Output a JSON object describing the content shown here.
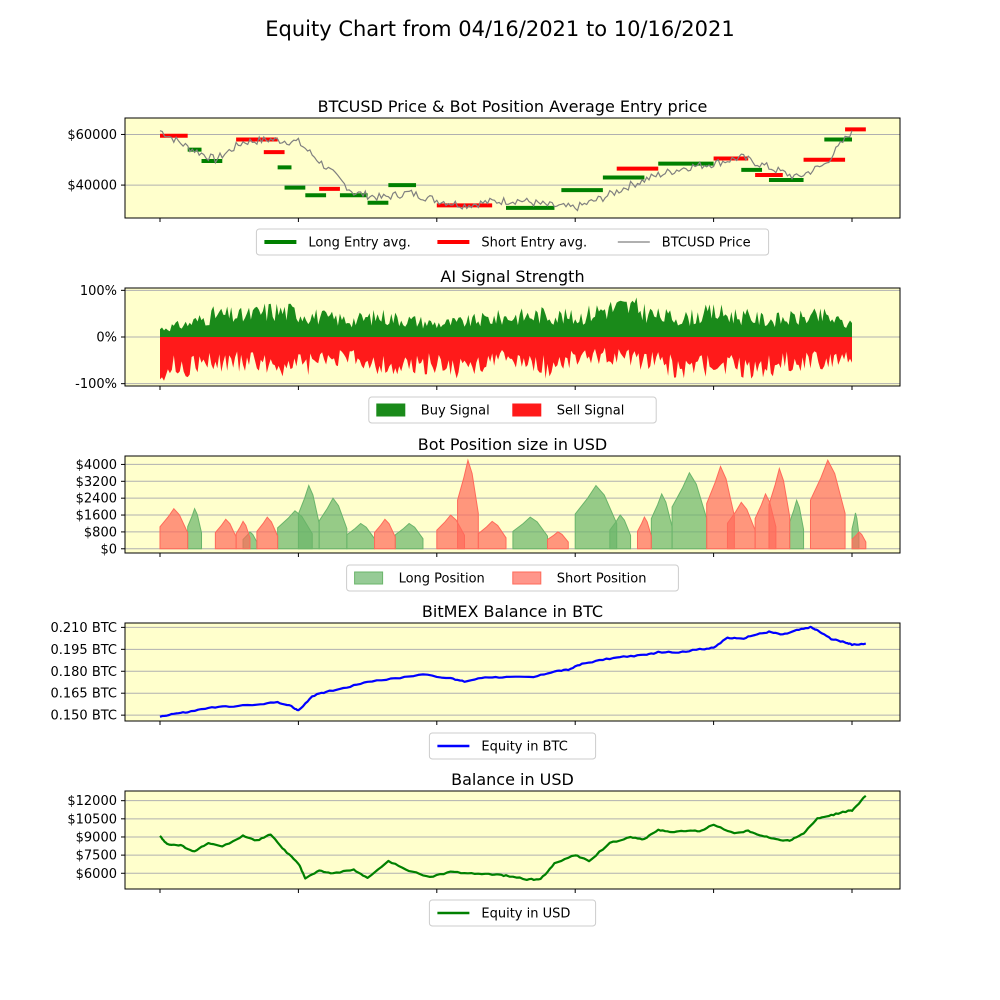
{
  "figure": {
    "title": "Equity Chart from 04/16/2021 to 10/16/2021"
  },
  "chart_data": [
    {
      "type": "line",
      "title": "BTCUSD Price & Bot Position Average Entry price",
      "ylim": [
        27000,
        66500
      ],
      "y_ticks": [
        40000,
        60000
      ],
      "y_tick_labels": [
        "$40000",
        "$60000"
      ],
      "x": [
        0,
        4,
        8,
        12,
        16,
        20,
        24,
        28,
        32,
        36,
        40,
        44,
        48,
        52,
        56,
        60,
        64,
        68,
        72,
        76,
        80,
        84,
        88,
        92,
        96,
        100
      ],
      "series": [
        {
          "name": "BTCUSD Price",
          "color": "#808080",
          "values": [
            61500,
            55000,
            50000,
            57000,
            58000,
            57000,
            47000,
            37000,
            35000,
            37000,
            34000,
            32000,
            33500,
            34000,
            32000,
            31000,
            35000,
            40000,
            44000,
            47000,
            48500,
            51000,
            47000,
            43000,
            48000,
            61500
          ]
        }
      ],
      "entry_segments": [
        {
          "type": "short",
          "x0": 0,
          "x1": 4,
          "y": 59500
        },
        {
          "type": "long",
          "x0": 4,
          "x1": 6,
          "y": 54000
        },
        {
          "type": "long",
          "x0": 6,
          "x1": 9,
          "y": 49500
        },
        {
          "type": "short",
          "x0": 11,
          "x1": 17,
          "y": 58000
        },
        {
          "type": "short",
          "x0": 15,
          "x1": 18,
          "y": 53000
        },
        {
          "type": "long",
          "x0": 17,
          "x1": 19,
          "y": 47000
        },
        {
          "type": "long",
          "x0": 18,
          "x1": 21,
          "y": 39000
        },
        {
          "type": "long",
          "x0": 21,
          "x1": 24,
          "y": 36000
        },
        {
          "type": "short",
          "x0": 23,
          "x1": 26,
          "y": 38500
        },
        {
          "type": "long",
          "x0": 26,
          "x1": 30,
          "y": 36000
        },
        {
          "type": "long",
          "x0": 30,
          "x1": 33,
          "y": 33000
        },
        {
          "type": "long",
          "x0": 33,
          "x1": 37,
          "y": 40000
        },
        {
          "type": "short",
          "x0": 40,
          "x1": 48,
          "y": 32000
        },
        {
          "type": "long",
          "x0": 50,
          "x1": 57,
          "y": 31000
        },
        {
          "type": "long",
          "x0": 58,
          "x1": 64,
          "y": 38000
        },
        {
          "type": "long",
          "x0": 64,
          "x1": 70,
          "y": 43000
        },
        {
          "type": "short",
          "x0": 66,
          "x1": 72,
          "y": 46500
        },
        {
          "type": "long",
          "x0": 72,
          "x1": 80,
          "y": 48500
        },
        {
          "type": "short",
          "x0": 80,
          "x1": 85,
          "y": 50500
        },
        {
          "type": "long",
          "x0": 84,
          "x1": 87,
          "y": 46000
        },
        {
          "type": "short",
          "x0": 86,
          "x1": 90,
          "y": 44000
        },
        {
          "type": "long",
          "x0": 88,
          "x1": 93,
          "y": 42000
        },
        {
          "type": "short",
          "x0": 93,
          "x1": 99,
          "y": 50000
        },
        {
          "type": "long",
          "x0": 96,
          "x1": 100,
          "y": 58000
        },
        {
          "type": "short",
          "x0": 99,
          "x1": 102,
          "y": 62000
        }
      ],
      "legend": {
        "placement": "below",
        "items": [
          {
            "label": "Long Entry avg.",
            "color": "#008000"
          },
          {
            "label": "Short Entry avg.",
            "color": "#ff0000"
          },
          {
            "label": "BTCUSD Price",
            "color": "#808080"
          }
        ]
      }
    },
    {
      "type": "area",
      "title": "AI Signal Strength",
      "ylim": [
        -105,
        105
      ],
      "y_ticks": [
        -100,
        0,
        100
      ],
      "y_tick_labels": [
        "-100%",
        "0%",
        "100%"
      ],
      "x": [
        0,
        4,
        8,
        12,
        16,
        20,
        24,
        28,
        32,
        36,
        40,
        44,
        48,
        52,
        56,
        60,
        64,
        68,
        72,
        76,
        80,
        84,
        88,
        92,
        96,
        100
      ],
      "series": [
        {
          "name": "Buy Signal",
          "color": "#1a8a1a",
          "values": [
            22,
            35,
            60,
            55,
            70,
            65,
            50,
            45,
            55,
            45,
            35,
            40,
            50,
            55,
            60,
            50,
            75,
            80,
            55,
            50,
            65,
            55,
            45,
            50,
            55,
            30
          ]
        },
        {
          "name": "Sell Signal",
          "color": "#ff1a1a",
          "values": [
            -85,
            -75,
            -70,
            -65,
            -70,
            -80,
            -60,
            -55,
            -75,
            -85,
            -70,
            -90,
            -55,
            -65,
            -80,
            -55,
            -50,
            -60,
            -65,
            -90,
            -70,
            -85,
            -75,
            -65,
            -60,
            -55
          ]
        }
      ],
      "legend": {
        "placement": "below",
        "items": [
          {
            "label": "Buy Signal",
            "color": "#1a8a1a"
          },
          {
            "label": "Sell Signal",
            "color": "#ff1a1a"
          }
        ]
      }
    },
    {
      "type": "area",
      "title": "Bot Position size in USD",
      "ylim": [
        -200,
        4400
      ],
      "y_ticks": [
        0,
        800,
        1600,
        2400,
        3200,
        4000
      ],
      "y_tick_labels": [
        "$0",
        "$800",
        "$1600",
        "$2400",
        "$3200",
        "$4000"
      ],
      "series": [
        {
          "name": "Long Position",
          "color": "#6ab56a",
          "segments": [
            {
              "x0": 4,
              "x1": 6,
              "peak": 1900
            },
            {
              "x0": 12,
              "x1": 14,
              "peak": 800
            },
            {
              "x0": 17,
              "x1": 22,
              "peak": 1800
            },
            {
              "x0": 20,
              "x1": 23,
              "peak": 3000
            },
            {
              "x0": 23,
              "x1": 27,
              "peak": 2400
            },
            {
              "x0": 27,
              "x1": 31,
              "peak": 1200
            },
            {
              "x0": 34,
              "x1": 38,
              "peak": 1200
            },
            {
              "x0": 51,
              "x1": 56,
              "peak": 1500
            },
            {
              "x0": 60,
              "x1": 66,
              "peak": 3000
            },
            {
              "x0": 65,
              "x1": 68,
              "peak": 1600
            },
            {
              "x0": 71,
              "x1": 74,
              "peak": 2600
            },
            {
              "x0": 74,
              "x1": 79,
              "peak": 3600
            },
            {
              "x0": 91,
              "x1": 93,
              "peak": 2300
            },
            {
              "x0": 100,
              "x1": 101,
              "peak": 1700
            }
          ]
        },
        {
          "name": "Short Position",
          "color": "#ff6a5a",
          "segments": [
            {
              "x0": 0,
              "x1": 4,
              "peak": 1900
            },
            {
              "x0": 8,
              "x1": 11,
              "peak": 1400
            },
            {
              "x0": 11,
              "x1": 13,
              "peak": 1300
            },
            {
              "x0": 14,
              "x1": 17,
              "peak": 1500
            },
            {
              "x0": 31,
              "x1": 34,
              "peak": 1400
            },
            {
              "x0": 40,
              "x1": 44,
              "peak": 1600
            },
            {
              "x0": 43,
              "x1": 46,
              "peak": 4200
            },
            {
              "x0": 46,
              "x1": 50,
              "peak": 1300
            },
            {
              "x0": 56,
              "x1": 59,
              "peak": 800
            },
            {
              "x0": 69,
              "x1": 71,
              "peak": 1500
            },
            {
              "x0": 79,
              "x1": 83,
              "peak": 3900
            },
            {
              "x0": 82,
              "x1": 86,
              "peak": 2200
            },
            {
              "x0": 86,
              "x1": 89,
              "peak": 2600
            },
            {
              "x0": 88,
              "x1": 91,
              "peak": 3800
            },
            {
              "x0": 94,
              "x1": 99,
              "peak": 4200
            },
            {
              "x0": 100,
              "x1": 102,
              "peak": 800
            }
          ]
        }
      ],
      "legend": {
        "placement": "below",
        "items": [
          {
            "label": "Long Position",
            "color": "#6ab56a"
          },
          {
            "label": "Short Position",
            "color": "#ff6a5a"
          }
        ]
      }
    },
    {
      "type": "line",
      "title": "BitMEX Balance in BTC",
      "ylim": [
        0.146,
        0.213
      ],
      "y_ticks": [
        0.15,
        0.165,
        0.18,
        0.195,
        0.21
      ],
      "y_tick_labels": [
        "0.150 BTC",
        "0.165 BTC",
        "0.180 BTC",
        "0.195 BTC",
        "0.210 BTC"
      ],
      "x": [
        0,
        2,
        4,
        7,
        10,
        14,
        17,
        19,
        20,
        22,
        24,
        27,
        30,
        34,
        38,
        42,
        44,
        47,
        50,
        54,
        57,
        59,
        61,
        64,
        67,
        70,
        72,
        75,
        78,
        80,
        82,
        84,
        86,
        88,
        90,
        92,
        94,
        95,
        97,
        99,
        100,
        102
      ],
      "series": [
        {
          "name": "Equity in BTC",
          "color": "#0000ff",
          "values": [
            0.149,
            0.151,
            0.152,
            0.155,
            0.156,
            0.157,
            0.159,
            0.156,
            0.153,
            0.163,
            0.166,
            0.169,
            0.173,
            0.175,
            0.178,
            0.175,
            0.173,
            0.176,
            0.176,
            0.176,
            0.18,
            0.181,
            0.185,
            0.188,
            0.19,
            0.191,
            0.193,
            0.193,
            0.195,
            0.196,
            0.203,
            0.202,
            0.205,
            0.207,
            0.205,
            0.208,
            0.21,
            0.208,
            0.202,
            0.2,
            0.198,
            0.199
          ]
        }
      ],
      "legend": {
        "placement": "below",
        "items": [
          {
            "label": "Equity in BTC",
            "color": "#0000ff"
          }
        ]
      }
    },
    {
      "type": "line",
      "title": "Balance in USD",
      "ylim": [
        4700,
        12800
      ],
      "y_ticks": [
        6000,
        7500,
        9000,
        10500,
        12000
      ],
      "y_tick_labels": [
        "$6000",
        "$7500",
        "$9000",
        "$10500",
        "$12000"
      ],
      "x": [
        0,
        1,
        3,
        5,
        7,
        9,
        12,
        14,
        16,
        18,
        20,
        21,
        23,
        25,
        28,
        30,
        33,
        36,
        39,
        42,
        45,
        48,
        50,
        53,
        55,
        57,
        60,
        62,
        65,
        68,
        70,
        72,
        74,
        76,
        78,
        80,
        83,
        85,
        87,
        89,
        91,
        93,
        95,
        97,
        99,
        100,
        102
      ],
      "series": [
        {
          "name": "Equity in USD",
          "color": "#008000",
          "values": [
            9100,
            8400,
            8300,
            7800,
            8500,
            8200,
            9100,
            8700,
            9200,
            7900,
            6800,
            5600,
            6200,
            6000,
            6300,
            5600,
            7000,
            6200,
            5700,
            6100,
            6000,
            5900,
            5800,
            5500,
            5500,
            6800,
            7500,
            7000,
            8500,
            9000,
            8800,
            9600,
            9400,
            9500,
            9500,
            10000,
            9300,
            9500,
            9100,
            8800,
            8700,
            9300,
            10500,
            10800,
            11100,
            11200,
            12400
          ]
        }
      ],
      "legend": {
        "placement": "below",
        "items": [
          {
            "label": "Equity in USD",
            "color": "#008000"
          }
        ]
      }
    }
  ]
}
